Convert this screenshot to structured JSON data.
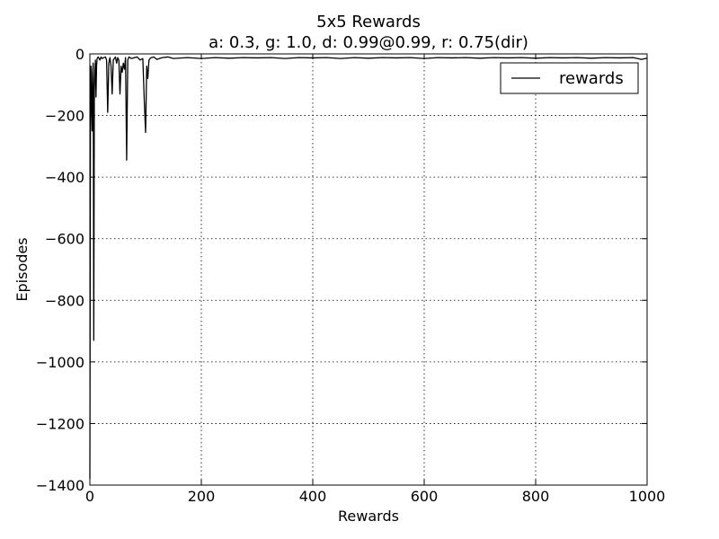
{
  "chart_data": {
    "type": "line",
    "title": "5x5 Rewards",
    "subtitle": "a: 0.3, g: 1.0, d: 0.99@0.99, r: 0.75(dir)",
    "xlabel": "Rewards",
    "ylabel": "Episodes",
    "xlim": [
      0,
      1000
    ],
    "ylim": [
      -1400,
      0
    ],
    "xticks": [
      0,
      200,
      400,
      600,
      800,
      1000
    ],
    "yticks": [
      0,
      -200,
      -400,
      -600,
      -800,
      -1000,
      -1200,
      -1400
    ],
    "grid": true,
    "legend_position": "top-right",
    "line_color": "#000000",
    "series": [
      {
        "name": "rewards",
        "points": [
          [
            0,
            -1380
          ],
          [
            1,
            -260
          ],
          [
            2,
            -40
          ],
          [
            3,
            -140
          ],
          [
            4,
            -250
          ],
          [
            5,
            -60
          ],
          [
            6,
            -30
          ],
          [
            7,
            -930
          ],
          [
            8,
            -120
          ],
          [
            9,
            -60
          ],
          [
            10,
            -20
          ],
          [
            11,
            -140
          ],
          [
            12,
            -40
          ],
          [
            13,
            -15
          ],
          [
            15,
            -10
          ],
          [
            18,
            -20
          ],
          [
            20,
            -10
          ],
          [
            22,
            -15
          ],
          [
            25,
            -12
          ],
          [
            28,
            -10
          ],
          [
            30,
            -20
          ],
          [
            32,
            -190
          ],
          [
            34,
            -30
          ],
          [
            36,
            -12
          ],
          [
            38,
            -40
          ],
          [
            40,
            -130
          ],
          [
            42,
            -20
          ],
          [
            44,
            -15
          ],
          [
            46,
            -10
          ],
          [
            48,
            -30
          ],
          [
            50,
            -12
          ],
          [
            52,
            -20
          ],
          [
            54,
            -130
          ],
          [
            56,
            -40
          ],
          [
            58,
            -60
          ],
          [
            60,
            -30
          ],
          [
            62,
            -50
          ],
          [
            64,
            -12
          ],
          [
            66,
            -345
          ],
          [
            68,
            -20
          ],
          [
            70,
            -10
          ],
          [
            75,
            -15
          ],
          [
            80,
            -12
          ],
          [
            85,
            -10
          ],
          [
            90,
            -20
          ],
          [
            95,
            -15
          ],
          [
            98,
            -170
          ],
          [
            100,
            -255
          ],
          [
            102,
            -40
          ],
          [
            104,
            -80
          ],
          [
            106,
            -20
          ],
          [
            108,
            -15
          ],
          [
            110,
            -12
          ],
          [
            115,
            -10
          ],
          [
            120,
            -18
          ],
          [
            130,
            -12
          ],
          [
            140,
            -10
          ],
          [
            150,
            -15
          ],
          [
            175,
            -12
          ],
          [
            200,
            -15
          ],
          [
            225,
            -12
          ],
          [
            250,
            -14
          ],
          [
            275,
            -12
          ],
          [
            300,
            -13
          ],
          [
            325,
            -12
          ],
          [
            350,
            -15
          ],
          [
            375,
            -12
          ],
          [
            400,
            -13
          ],
          [
            425,
            -12
          ],
          [
            450,
            -15
          ],
          [
            475,
            -12
          ],
          [
            500,
            -14
          ],
          [
            525,
            -12
          ],
          [
            550,
            -13
          ],
          [
            575,
            -12
          ],
          [
            600,
            -15
          ],
          [
            625,
            -12
          ],
          [
            650,
            -13
          ],
          [
            675,
            -12
          ],
          [
            700,
            -14
          ],
          [
            725,
            -12
          ],
          [
            750,
            -13
          ],
          [
            775,
            -12
          ],
          [
            800,
            -14
          ],
          [
            825,
            -12
          ],
          [
            850,
            -13
          ],
          [
            875,
            -12
          ],
          [
            900,
            -14
          ],
          [
            925,
            -12
          ],
          [
            950,
            -13
          ],
          [
            975,
            -12
          ],
          [
            990,
            -18
          ],
          [
            1000,
            -14
          ]
        ]
      }
    ]
  }
}
